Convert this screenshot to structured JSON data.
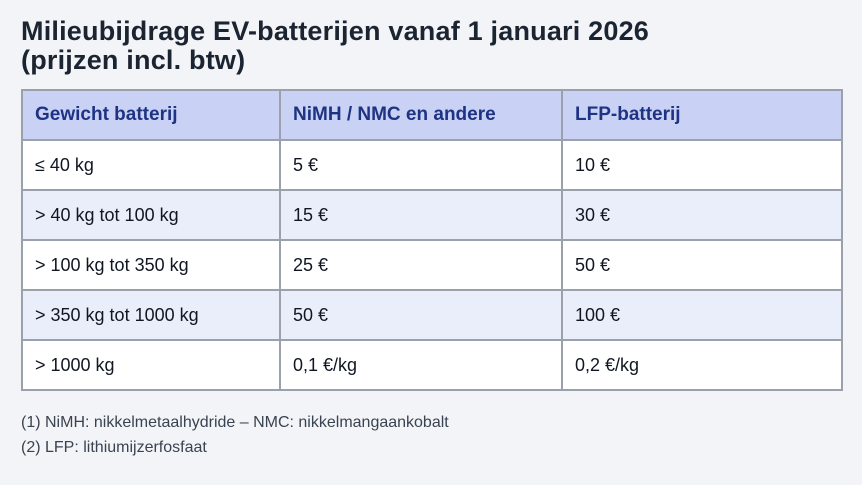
{
  "page": {
    "title_line1": "Milieubijdrage EV-batterijen vanaf 1 januari 2026",
    "title_line2": "(prijzen incl. btw)"
  },
  "table": {
    "headers": [
      "Gewicht batterij",
      "NiMH / NMC en andere",
      "LFP-batterij"
    ],
    "rows": [
      [
        "≤ 40 kg",
        "5 €",
        "10 €"
      ],
      [
        "> 40 kg tot 100 kg",
        "15 €",
        "30 €"
      ],
      [
        "> 100 kg tot 350 kg",
        "25 €",
        "50 €"
      ],
      [
        "> 350 kg tot 1000 kg",
        "50 €",
        "100 €"
      ],
      [
        "> 1000 kg",
        "0,1 €/kg",
        "0,2 €/kg"
      ]
    ]
  },
  "footnotes": [
    "(1) NiMH: nikkelmetaalhydride – NMC: nikkelmangaankobalt",
    "(2) LFP: lithiumijzerfosfaat"
  ],
  "colors": {
    "page_background": "#f3f4f7",
    "header_background": "#c9d2f4",
    "header_text": "#1e3383",
    "row_stripe_background": "#eaeefb",
    "row_background": "#ffffff",
    "table_border": "#9aa1ad",
    "cell_text": "#111722",
    "title_text": "#1b2431",
    "footnote_text": "#3a4352"
  }
}
